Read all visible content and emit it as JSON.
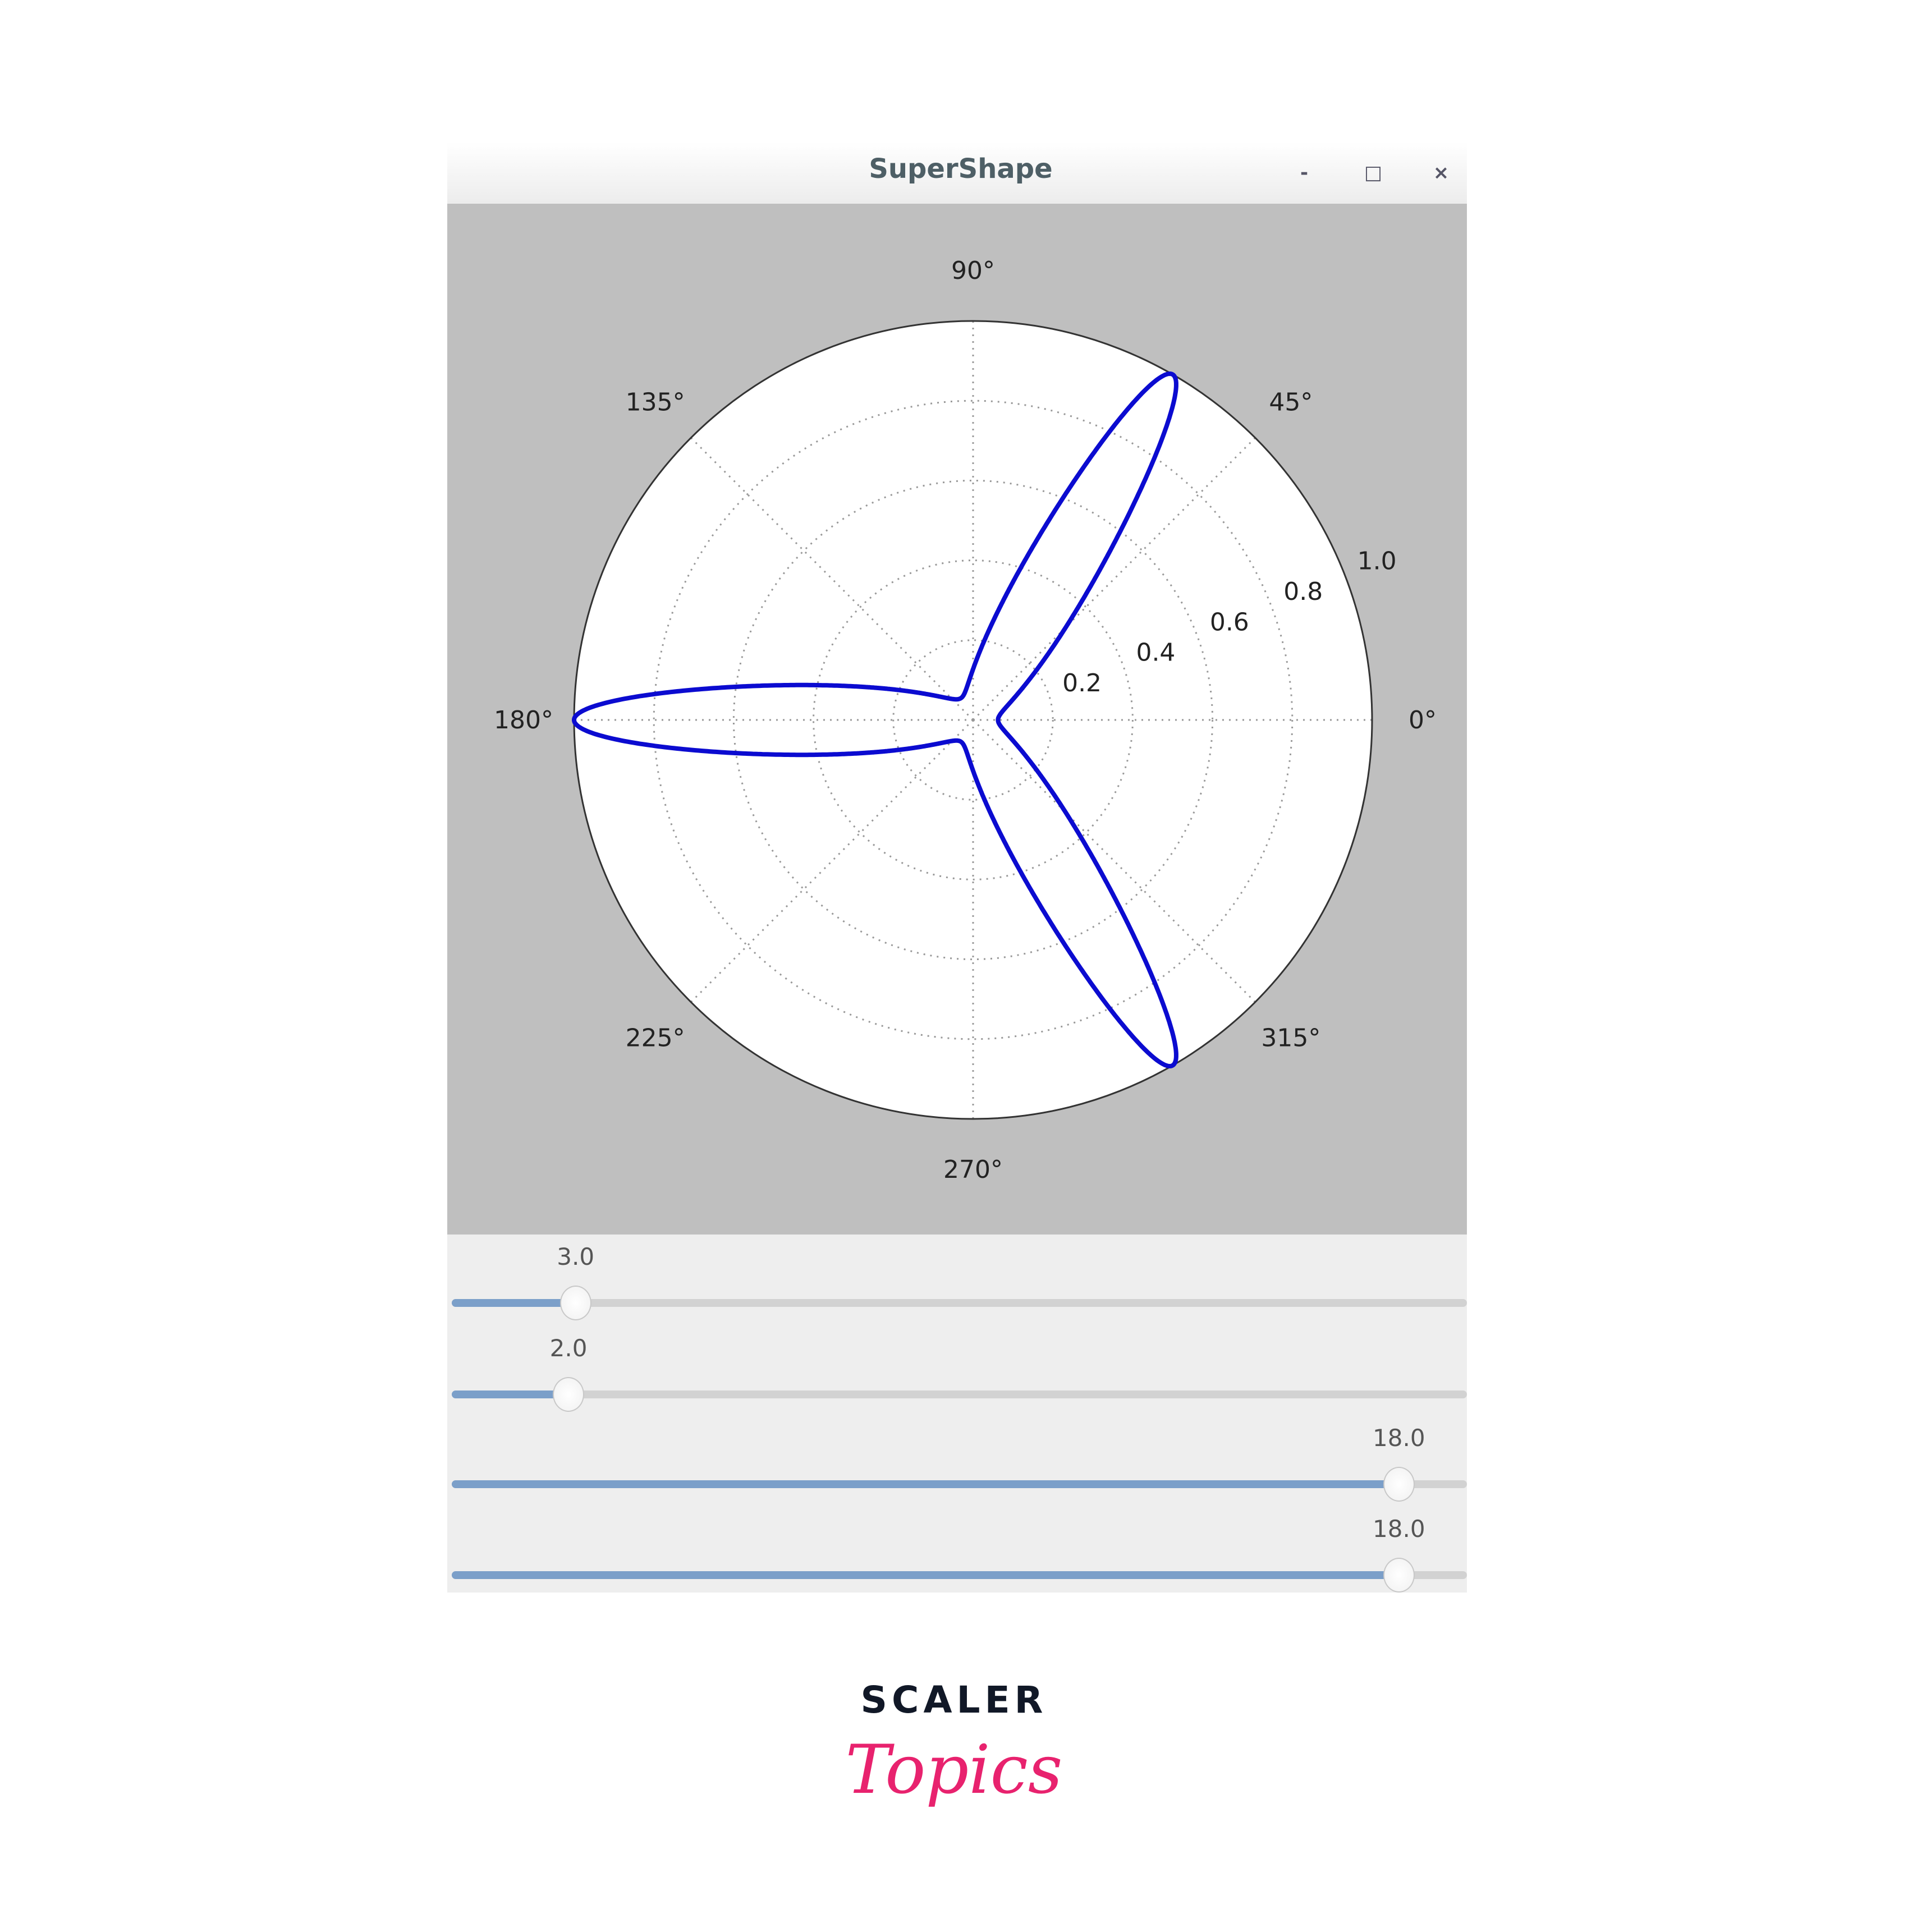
{
  "window": {
    "title": "SuperShape",
    "controls": {
      "minimize": "-",
      "maximize": "□",
      "close": "×"
    }
  },
  "plot": {
    "background": "#bfbfbf",
    "curve_color": "#0b0bd0",
    "angle_labels": [
      "0°",
      "45°",
      "90°",
      "135°",
      "180°",
      "225°",
      "270°",
      "315°"
    ],
    "radial_labels": [
      "0.2",
      "0.4",
      "0.6",
      "0.8",
      "1.0"
    ]
  },
  "chart_data": {
    "type": "line",
    "projection": "polar",
    "formula": "superformula r(θ) normalized to max 1",
    "params": {
      "m": 3.0,
      "n1": 2.0,
      "n2": 18.0,
      "n3": 18.0,
      "a": 1,
      "b": 1
    },
    "rlim": [
      0,
      1.0
    ],
    "rticks": [
      0.2,
      0.4,
      0.6,
      0.8,
      1.0
    ],
    "theta_ticks_deg": [
      0,
      45,
      90,
      135,
      180,
      225,
      270,
      315
    ],
    "grid": true
  },
  "sliders": [
    {
      "value": "3.0",
      "fill_fraction": 0.122
    },
    {
      "value": "2.0",
      "fill_fraction": 0.115
    },
    {
      "value": "18.0",
      "fill_fraction": 0.933
    },
    {
      "value": "18.0",
      "fill_fraction": 0.933
    }
  ],
  "logo": {
    "line1": "SCALER",
    "line2": "Topics"
  }
}
